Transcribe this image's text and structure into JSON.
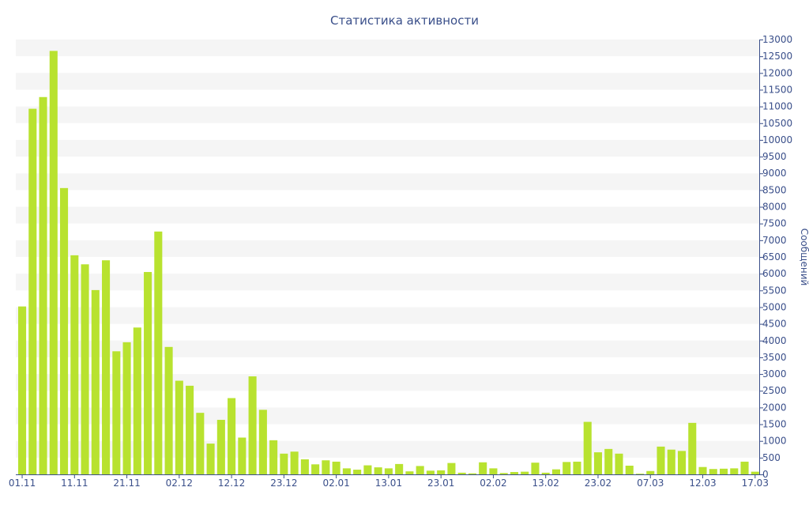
{
  "chart_data": {
    "type": "bar",
    "title": "Статистика активности",
    "ylabel": "Сообщений",
    "ylim": [
      0,
      13000
    ],
    "y_ticks": [
      0,
      500,
      1000,
      1500,
      2000,
      2500,
      3000,
      3500,
      4000,
      4500,
      5000,
      5500,
      6000,
      6500,
      7000,
      7500,
      8000,
      8500,
      9000,
      9500,
      10000,
      10500,
      11000,
      11500,
      12000,
      12500,
      13000
    ],
    "y_axis_side": "right",
    "grid": "horizontal bands",
    "bar_color": "#b8e22f",
    "axis_color": "#3a4f8a",
    "band_color": "#f5f5f5",
    "x_tick_labels": [
      {
        "index": 0,
        "label": "01.11"
      },
      {
        "index": 5,
        "label": "11.11"
      },
      {
        "index": 10,
        "label": "21.11"
      },
      {
        "index": 15,
        "label": "02.12"
      },
      {
        "index": 20,
        "label": "12.12"
      },
      {
        "index": 25,
        "label": "23.12"
      },
      {
        "index": 30,
        "label": "02.01"
      },
      {
        "index": 35,
        "label": "13.01"
      },
      {
        "index": 40,
        "label": "23.01"
      },
      {
        "index": 45,
        "label": "02.02"
      },
      {
        "index": 50,
        "label": "13.02"
      },
      {
        "index": 55,
        "label": "23.02"
      },
      {
        "index": 60,
        "label": "07.03"
      },
      {
        "index": 65,
        "label": "12.03"
      },
      {
        "index": 70,
        "label": "17.03"
      }
    ],
    "values": [
      5020,
      10930,
      11280,
      12660,
      8560,
      6550,
      6280,
      5510,
      6400,
      3680,
      3950,
      4390,
      6050,
      7260,
      3810,
      2800,
      2650,
      1840,
      920,
      1630,
      2280,
      1100,
      2930,
      1930,
      1020,
      620,
      680,
      450,
      300,
      420,
      380,
      180,
      140,
      270,
      210,
      180,
      310,
      90,
      250,
      110,
      120,
      340,
      50,
      30,
      360,
      180,
      40,
      70,
      80,
      350,
      50,
      150,
      370,
      380,
      1570,
      660,
      760,
      620,
      260,
      20,
      100,
      830,
      740,
      700,
      1540,
      220,
      160,
      170,
      180,
      380,
      80
    ]
  }
}
